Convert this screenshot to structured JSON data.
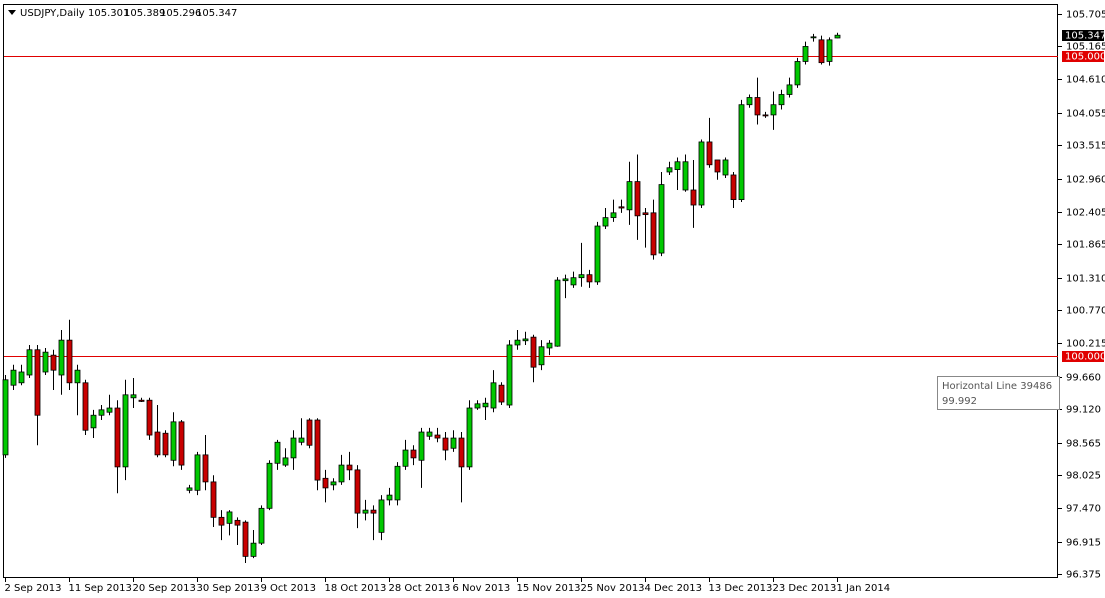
{
  "chart_data": {
    "type": "candlestick",
    "symbol": "USDJPY,Daily",
    "categories": [
      "2 Sep 2013",
      null,
      null,
      null,
      null,
      null,
      null,
      null,
      "11 Sep 2013",
      null,
      null,
      null,
      null,
      null,
      null,
      null,
      "20 Sep 2013",
      null,
      null,
      null,
      null,
      null,
      null,
      null,
      "30 Sep 2013",
      null,
      null,
      null,
      null,
      null,
      null,
      null,
      "9 Oct 2013",
      null,
      null,
      null,
      null,
      null,
      null,
      null,
      "18 Oct 2013",
      null,
      null,
      null,
      null,
      null,
      null,
      null,
      "28 Oct 2013",
      null,
      null,
      null,
      null,
      null,
      null,
      null,
      "6 Nov 2013",
      null,
      null,
      null,
      null,
      null,
      null,
      null,
      "15 Nov 2013",
      null,
      null,
      null,
      null,
      null,
      null,
      null,
      "25 Nov 2013",
      null,
      null,
      null,
      null,
      null,
      null,
      null,
      "4 Dec 2013",
      null,
      null,
      null,
      null,
      null,
      null,
      null,
      "13 Dec 2013",
      null,
      null,
      null,
      null,
      null,
      null,
      null,
      "23 Dec 2013",
      null,
      null,
      null,
      null,
      null,
      null,
      null,
      "1 Jan 2014"
    ],
    "open": [
      98.36,
      99.52,
      99.56,
      99.69,
      100.11,
      99.74,
      100.02,
      99.69,
      100.27,
      99.56,
      99.56,
      98.81,
      99.02,
      99.07,
      99.14,
      98.16,
      99.31,
      99.27,
      99.27,
      98.74,
      98.72,
      98.27,
      98.91,
      97.77,
      97.77,
      98.36,
      97.91,
      97.32,
      97.22,
      97.27,
      97.24,
      96.67,
      96.89,
      97.47,
      98.22,
      98.19,
      98.31,
      98.57,
      98.94,
      98.94,
      97.97,
      97.86,
      97.91,
      98.19,
      98.11,
      97.39,
      97.44,
      97.07,
      97.61,
      97.61,
      98.17,
      98.44,
      98.27,
      98.67,
      98.69,
      98.64,
      98.47,
      98.64,
      98.16,
      99.14,
      99.16,
      99.14,
      99.52,
      99.19,
      100.19,
      100.26,
      100.32,
      99.86,
      100.14,
      100.17,
      101.26,
      101.19,
      101.31,
      101.36,
      101.24,
      102.17,
      102.31,
      102.49,
      102.44,
      102.91,
      102.39,
      102.39,
      101.72,
      103.07,
      103.11,
      102.77,
      102.77,
      102.52,
      103.57,
      103.27,
      103.02,
      103.02,
      102.61,
      104.19,
      104.31,
      104.02,
      104.02,
      104.19,
      104.36,
      104.52,
      104.91,
      105.31,
      105.27,
      104.91,
      105.301
    ],
    "high": [
      99.69,
      99.86,
      99.86,
      100.19,
      100.19,
      100.14,
      100.11,
      100.44,
      100.61,
      99.86,
      99.61,
      99.11,
      99.19,
      99.36,
      99.27,
      99.61,
      99.64,
      99.31,
      99.31,
      99.19,
      98.77,
      99.07,
      98.94,
      97.86,
      98.41,
      98.69,
      98.02,
      97.44,
      97.44,
      97.32,
      97.27,
      97.11,
      97.52,
      98.27,
      98.61,
      98.47,
      98.77,
      98.97,
      98.97,
      98.97,
      98.11,
      97.97,
      98.36,
      98.41,
      98.19,
      97.61,
      97.52,
      97.69,
      97.81,
      98.24,
      98.61,
      98.52,
      98.81,
      98.81,
      98.81,
      98.74,
      98.77,
      98.74,
      99.27,
      99.27,
      99.31,
      99.77,
      99.57,
      100.27,
      100.44,
      100.41,
      100.36,
      100.27,
      100.27,
      101.32,
      101.36,
      101.41,
      101.89,
      101.44,
      102.24,
      102.47,
      102.61,
      102.61,
      103.24,
      103.36,
      102.47,
      102.61,
      103.07,
      103.24,
      103.31,
      103.36,
      103.27,
      103.61,
      103.97,
      103.27,
      103.31,
      103.07,
      104.27,
      104.36,
      104.64,
      104.07,
      104.41,
      104.44,
      104.64,
      104.97,
      105.24,
      105.37,
      105.34,
      105.31,
      105.389
    ],
    "low": [
      98.31,
      99.44,
      99.52,
      99.64,
      98.52,
      99.69,
      99.44,
      99.36,
      99.44,
      99.02,
      98.69,
      98.64,
      98.94,
      99.02,
      97.72,
      97.94,
      99.14,
      99.24,
      98.61,
      98.32,
      98.32,
      98.17,
      98.11,
      97.72,
      97.69,
      97.77,
      97.16,
      96.94,
      97.02,
      96.86,
      96.56,
      96.64,
      96.86,
      97.44,
      98.11,
      98.16,
      98.11,
      98.52,
      98.47,
      97.77,
      97.57,
      97.77,
      97.86,
      97.94,
      97.14,
      97.27,
      96.94,
      96.94,
      97.52,
      97.52,
      98.11,
      98.19,
      97.81,
      98.61,
      98.57,
      98.27,
      98.41,
      97.57,
      98.11,
      99.11,
      98.94,
      99.07,
      99.19,
      99.14,
      100.11,
      100.19,
      99.57,
      99.77,
      100.02,
      100.16,
      100.97,
      101.14,
      101.16,
      101.14,
      101.19,
      102.12,
      102.24,
      102.39,
      102.19,
      101.94,
      101.81,
      101.61,
      101.67,
      103.02,
      102.77,
      102.74,
      102.14,
      102.47,
      103.14,
      102.94,
      102.97,
      102.47,
      102.57,
      104.14,
      103.86,
      103.97,
      103.77,
      104.11,
      104.31,
      104.47,
      104.86,
      105.24,
      104.86,
      104.84,
      105.296
    ],
    "close": [
      99.61,
      99.77,
      99.74,
      100.11,
      99.02,
      100.07,
      99.77,
      100.27,
      99.56,
      99.77,
      98.77,
      99.02,
      99.11,
      99.14,
      98.16,
      99.36,
      99.36,
      99.25,
      98.69,
      98.36,
      98.36,
      98.91,
      98.19,
      97.81,
      98.36,
      97.91,
      97.32,
      97.19,
      97.41,
      97.19,
      96.67,
      96.89,
      97.47,
      98.22,
      98.57,
      98.31,
      98.64,
      98.64,
      98.52,
      97.94,
      97.81,
      97.91,
      98.19,
      98.11,
      97.39,
      97.44,
      97.39,
      97.61,
      97.69,
      98.17,
      98.44,
      98.31,
      98.74,
      98.74,
      98.64,
      98.44,
      98.64,
      98.16,
      99.14,
      99.21,
      99.22,
      99.56,
      99.24,
      100.19,
      100.27,
      100.29,
      99.82,
      100.16,
      100.22,
      101.27,
      101.29,
      101.31,
      101.36,
      101.24,
      102.17,
      102.31,
      102.39,
      102.47,
      102.91,
      102.34,
      102.36,
      101.69,
      102.86,
      103.14,
      103.24,
      103.24,
      102.52,
      103.57,
      103.19,
      103.07,
      103.27,
      102.61,
      104.19,
      104.31,
      104.02,
      104.01,
      104.19,
      104.36,
      104.52,
      104.91,
      105.16,
      105.32,
      104.89,
      105.27,
      105.347
    ],
    "up_color": "#00c800",
    "down_color": "#c80000",
    "ylim": [
      96.31,
      105.85
    ],
    "yticks": [
      105.705,
      105.165,
      {
        "value": 104.61,
        "label": "104.610"
      },
      104.055,
      103.515,
      {
        "value": 102.96,
        "label": "102.960"
      },
      102.405,
      101.865,
      {
        "value": 101.31,
        "label": "101.310"
      },
      {
        "value": 100.77,
        "label": "100.770"
      },
      100.215,
      {
        "value": 99.66,
        "label": "99.660"
      },
      {
        "value": 99.12,
        "label": "99.120"
      },
      98.565,
      98.025,
      {
        "value": 97.47,
        "label": "97.470"
      },
      96.915,
      96.375
    ],
    "hlines": [
      {
        "value": 105,
        "label": "105.000",
        "color": "#e00000"
      },
      {
        "value": 100,
        "label": "100.000",
        "color": "#e00000"
      }
    ],
    "tooltip": {
      "name": "Horizontal Line 39486",
      "value": 99.992
    }
  }
}
